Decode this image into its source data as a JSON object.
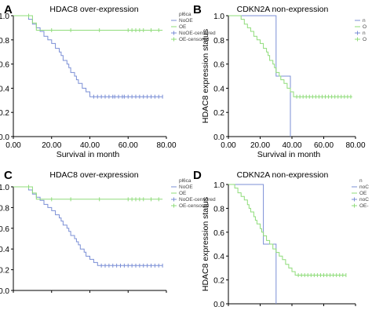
{
  "chart_data": [
    {
      "panel": "A",
      "type": "line",
      "title": "HDAC8 over-expression",
      "xlabel": "Survival in month",
      "ylabel": "",
      "xlim": [
        0,
        80
      ],
      "ylim": [
        0,
        1.0
      ],
      "x_ticks": [
        "0.00",
        "20.00",
        "40.00",
        "60.00",
        "80.00"
      ],
      "y_ticks": [
        "0.0",
        "0.2",
        "0.4",
        "0.6",
        "0.8",
        "1.0"
      ],
      "legend": {
        "title": "pl6ca",
        "placement": "top-right",
        "entries": [
          "NoOE",
          "OE",
          "NoOE-censored",
          "OE-censored"
        ]
      },
      "grid": false,
      "series": [
        {
          "name": "NoOE",
          "color": "#7b8fd6",
          "steps": [
            [
              0,
              1.0
            ],
            [
              8,
              0.97
            ],
            [
              10,
              0.93
            ],
            [
              12,
              0.9
            ],
            [
              14,
              0.87
            ],
            [
              16,
              0.83
            ],
            [
              18,
              0.8
            ],
            [
              20,
              0.77
            ],
            [
              22,
              0.73
            ],
            [
              24,
              0.7
            ],
            [
              25,
              0.67
            ],
            [
              26,
              0.63
            ],
            [
              28,
              0.6
            ],
            [
              29,
              0.57
            ],
            [
              30,
              0.53
            ],
            [
              32,
              0.5
            ],
            [
              33,
              0.47
            ],
            [
              34,
              0.44
            ],
            [
              36,
              0.4
            ],
            [
              38,
              0.37
            ],
            [
              40,
              0.33
            ],
            [
              78,
              0.33
            ]
          ],
          "censored": [
            42,
            44,
            46,
            48,
            50,
            52,
            53,
            55,
            57,
            58,
            60,
            62,
            64,
            66,
            68,
            70,
            72,
            74,
            76,
            78
          ]
        },
        {
          "name": "OE",
          "color": "#8fdc7a",
          "steps": [
            [
              0,
              1.0
            ],
            [
              10,
              0.94
            ],
            [
              12,
              0.88
            ],
            [
              78,
              0.88
            ]
          ],
          "censored": [
            8,
            20,
            30,
            45,
            60,
            62,
            64,
            66,
            68,
            72,
            76
          ]
        }
      ]
    },
    {
      "panel": "B",
      "type": "line",
      "title": "CDKN2A non-expression",
      "xlabel": "Survival in month",
      "ylabel": "HDAC8 expression status",
      "xlim": [
        0,
        80
      ],
      "ylim": [
        0,
        1.0
      ],
      "x_ticks": [
        "0.00",
        "20.00",
        "40.00",
        "60.00",
        "80.00"
      ],
      "y_ticks": [
        "0.0",
        "0.2",
        "0.4",
        "0.6",
        "0.8",
        "1.0"
      ],
      "legend": {
        "title": "",
        "placement": "right",
        "entries": [
          "n",
          "O",
          "n",
          "O"
        ]
      },
      "grid": false,
      "series": [
        {
          "name": "n",
          "color": "#7b8fd6",
          "steps": [
            [
              0,
              1.0
            ],
            [
              30,
              0.5
            ],
            [
              39,
              0.0
            ]
          ],
          "censored": []
        },
        {
          "name": "O",
          "color": "#8fdc7a",
          "steps": [
            [
              0,
              1.0
            ],
            [
              8,
              0.97
            ],
            [
              10,
              0.93
            ],
            [
              12,
              0.9
            ],
            [
              14,
              0.87
            ],
            [
              16,
              0.83
            ],
            [
              18,
              0.8
            ],
            [
              20,
              0.77
            ],
            [
              22,
              0.73
            ],
            [
              24,
              0.7
            ],
            [
              25,
              0.67
            ],
            [
              26,
              0.63
            ],
            [
              28,
              0.6
            ],
            [
              29,
              0.57
            ],
            [
              30,
              0.53
            ],
            [
              32,
              0.5
            ],
            [
              33,
              0.47
            ],
            [
              35,
              0.44
            ],
            [
              37,
              0.4
            ],
            [
              39,
              0.37
            ],
            [
              41,
              0.33
            ],
            [
              78,
              0.33
            ]
          ],
          "censored": [
            43,
            45,
            47,
            49,
            51,
            53,
            55,
            57,
            59,
            61,
            63,
            65,
            67,
            69,
            71,
            73,
            75,
            77
          ]
        }
      ]
    },
    {
      "panel": "C",
      "type": "line",
      "title": "HDAC8 over-expression",
      "xlabel": "",
      "ylabel": "",
      "xlim": [
        0,
        80
      ],
      "ylim": [
        0,
        1.0
      ],
      "x_ticks": [],
      "y_ticks": [
        "0.0",
        "0.2",
        "0.4",
        "0.6",
        "0.8",
        "1.0"
      ],
      "legend": {
        "title": "pl6ca",
        "placement": "top-right",
        "entries": [
          "NoOE",
          "OE",
          "NoOE-censored",
          "OE-censored"
        ]
      },
      "grid": false,
      "series": [
        {
          "name": "NoOE",
          "color": "#7b8fd6",
          "steps": [
            [
              0,
              1.0
            ],
            [
              8,
              0.97
            ],
            [
              10,
              0.93
            ],
            [
              12,
              0.9
            ],
            [
              14,
              0.87
            ],
            [
              16,
              0.83
            ],
            [
              18,
              0.8
            ],
            [
              20,
              0.77
            ],
            [
              22,
              0.73
            ],
            [
              24,
              0.7
            ],
            [
              25,
              0.67
            ],
            [
              26,
              0.63
            ],
            [
              28,
              0.6
            ],
            [
              29,
              0.57
            ],
            [
              30,
              0.53
            ],
            [
              32,
              0.5
            ],
            [
              33,
              0.47
            ],
            [
              34,
              0.44
            ],
            [
              35,
              0.4
            ],
            [
              37,
              0.37
            ],
            [
              38,
              0.33
            ],
            [
              40,
              0.3
            ],
            [
              42,
              0.27
            ],
            [
              44,
              0.24
            ],
            [
              78,
              0.24
            ]
          ],
          "censored": [
            46,
            48,
            50,
            52,
            54,
            56,
            58,
            60,
            62,
            64,
            66,
            68,
            70,
            72,
            74,
            76,
            78
          ]
        },
        {
          "name": "OE",
          "color": "#8fdc7a",
          "steps": [
            [
              0,
              1.0
            ],
            [
              10,
              0.94
            ],
            [
              12,
              0.88
            ],
            [
              78,
              0.88
            ]
          ],
          "censored": [
            8,
            20,
            30,
            45,
            60,
            62,
            64,
            66,
            68,
            72,
            76
          ]
        }
      ]
    },
    {
      "panel": "D",
      "type": "line",
      "title": "CDKN2A non-expression",
      "xlabel": "",
      "ylabel": "HDAC8 expression status",
      "xlim": [
        0,
        80
      ],
      "ylim": [
        0,
        1.0
      ],
      "x_ticks": [],
      "y_ticks": [
        "0.0",
        "0.2",
        "0.4",
        "0.6",
        "0.8",
        "1.0"
      ],
      "legend": {
        "title": "n",
        "placement": "right",
        "entries": [
          "noC",
          "OE",
          "noC",
          "OE-"
        ]
      },
      "grid": false,
      "series": [
        {
          "name": "noC",
          "color": "#7b8fd6",
          "steps": [
            [
              0,
              1.0
            ],
            [
              22,
              1.0
            ],
            [
              22,
              0.5
            ],
            [
              30,
              0.5
            ],
            [
              30,
              0.0
            ]
          ],
          "censored": []
        },
        {
          "name": "OE",
          "color": "#8fdc7a",
          "steps": [
            [
              0,
              1.0
            ],
            [
              4,
              0.97
            ],
            [
              6,
              0.93
            ],
            [
              8,
              0.9
            ],
            [
              10,
              0.87
            ],
            [
              12,
              0.83
            ],
            [
              13,
              0.8
            ],
            [
              14,
              0.77
            ],
            [
              16,
              0.73
            ],
            [
              17,
              0.7
            ],
            [
              18,
              0.67
            ],
            [
              20,
              0.63
            ],
            [
              21,
              0.6
            ],
            [
              22,
              0.57
            ],
            [
              24,
              0.53
            ],
            [
              26,
              0.5
            ],
            [
              28,
              0.46
            ],
            [
              30,
              0.43
            ],
            [
              32,
              0.4
            ],
            [
              34,
              0.37
            ],
            [
              36,
              0.33
            ],
            [
              38,
              0.3
            ],
            [
              40,
              0.27
            ],
            [
              42,
              0.24
            ],
            [
              74,
              0.24
            ]
          ],
          "censored": [
            44,
            46,
            48,
            50,
            52,
            54,
            56,
            58,
            60,
            62,
            64,
            66,
            68,
            70,
            72,
            74
          ]
        }
      ]
    }
  ]
}
